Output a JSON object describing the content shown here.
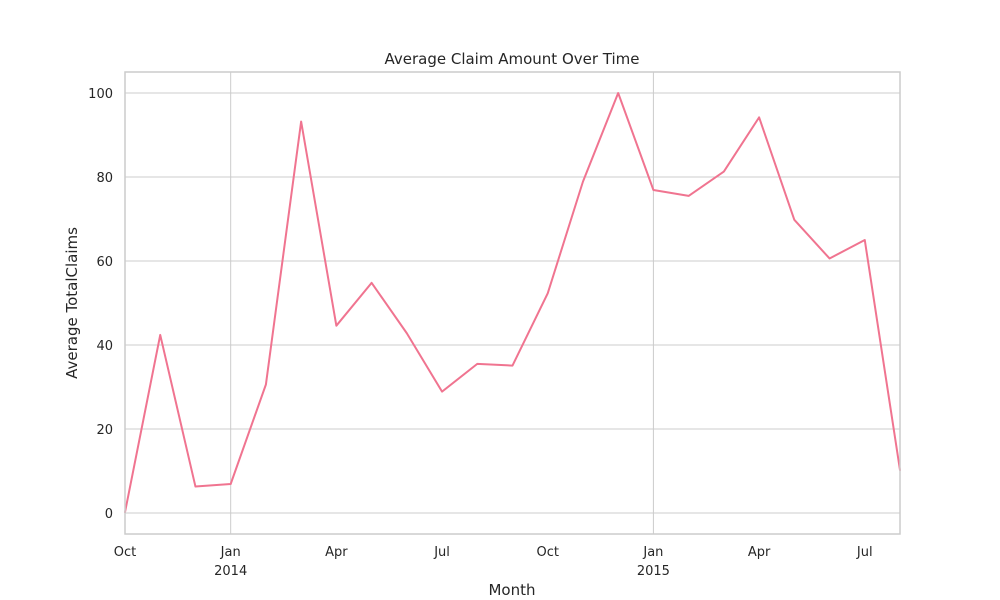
{
  "chart_data": {
    "type": "line",
    "title": "Average Claim Amount Over Time",
    "xlabel": "Month",
    "ylabel": "Average TotalClaims",
    "x": [
      "2013-10",
      "2013-11",
      "2013-12",
      "2014-01",
      "2014-02",
      "2014-03",
      "2014-04",
      "2014-05",
      "2014-06",
      "2014-07",
      "2014-08",
      "2014-09",
      "2014-10",
      "2014-11",
      "2014-12",
      "2015-01",
      "2015-02",
      "2015-03",
      "2015-04",
      "2015-05",
      "2015-06",
      "2015-07",
      "2015-08"
    ],
    "series": [
      {
        "values": [
          0.2,
          42.4,
          6.3,
          6.9,
          30.6,
          93.2,
          44.6,
          54.8,
          42.8,
          28.9,
          35.5,
          35.1,
          52.3,
          78.9,
          100.0,
          76.9,
          75.5,
          81.3,
          94.2,
          69.8,
          60.6,
          65.0,
          10.2
        ],
        "color": "#f07490"
      }
    ],
    "xlim": [
      "2013-10",
      "2015-08"
    ],
    "ylim": [
      -5,
      105
    ],
    "yticks": [
      0,
      20,
      40,
      60,
      80,
      100
    ],
    "xticks": [
      {
        "at": "2013-10",
        "label": "Oct",
        "sublabel": ""
      },
      {
        "at": "2014-01",
        "label": "Jan",
        "sublabel": "2014"
      },
      {
        "at": "2014-04",
        "label": "Apr",
        "sublabel": ""
      },
      {
        "at": "2014-07",
        "label": "Jul",
        "sublabel": ""
      },
      {
        "at": "2014-10",
        "label": "Oct",
        "sublabel": ""
      },
      {
        "at": "2015-01",
        "label": "Jan",
        "sublabel": "2015"
      },
      {
        "at": "2015-04",
        "label": "Apr",
        "sublabel": ""
      },
      {
        "at": "2015-07",
        "label": "Jul",
        "sublabel": ""
      }
    ],
    "grid": true,
    "legend": "none",
    "style": {
      "grid_color": "#cccccc",
      "text_color": "#262626",
      "background": "#ffffff"
    }
  }
}
